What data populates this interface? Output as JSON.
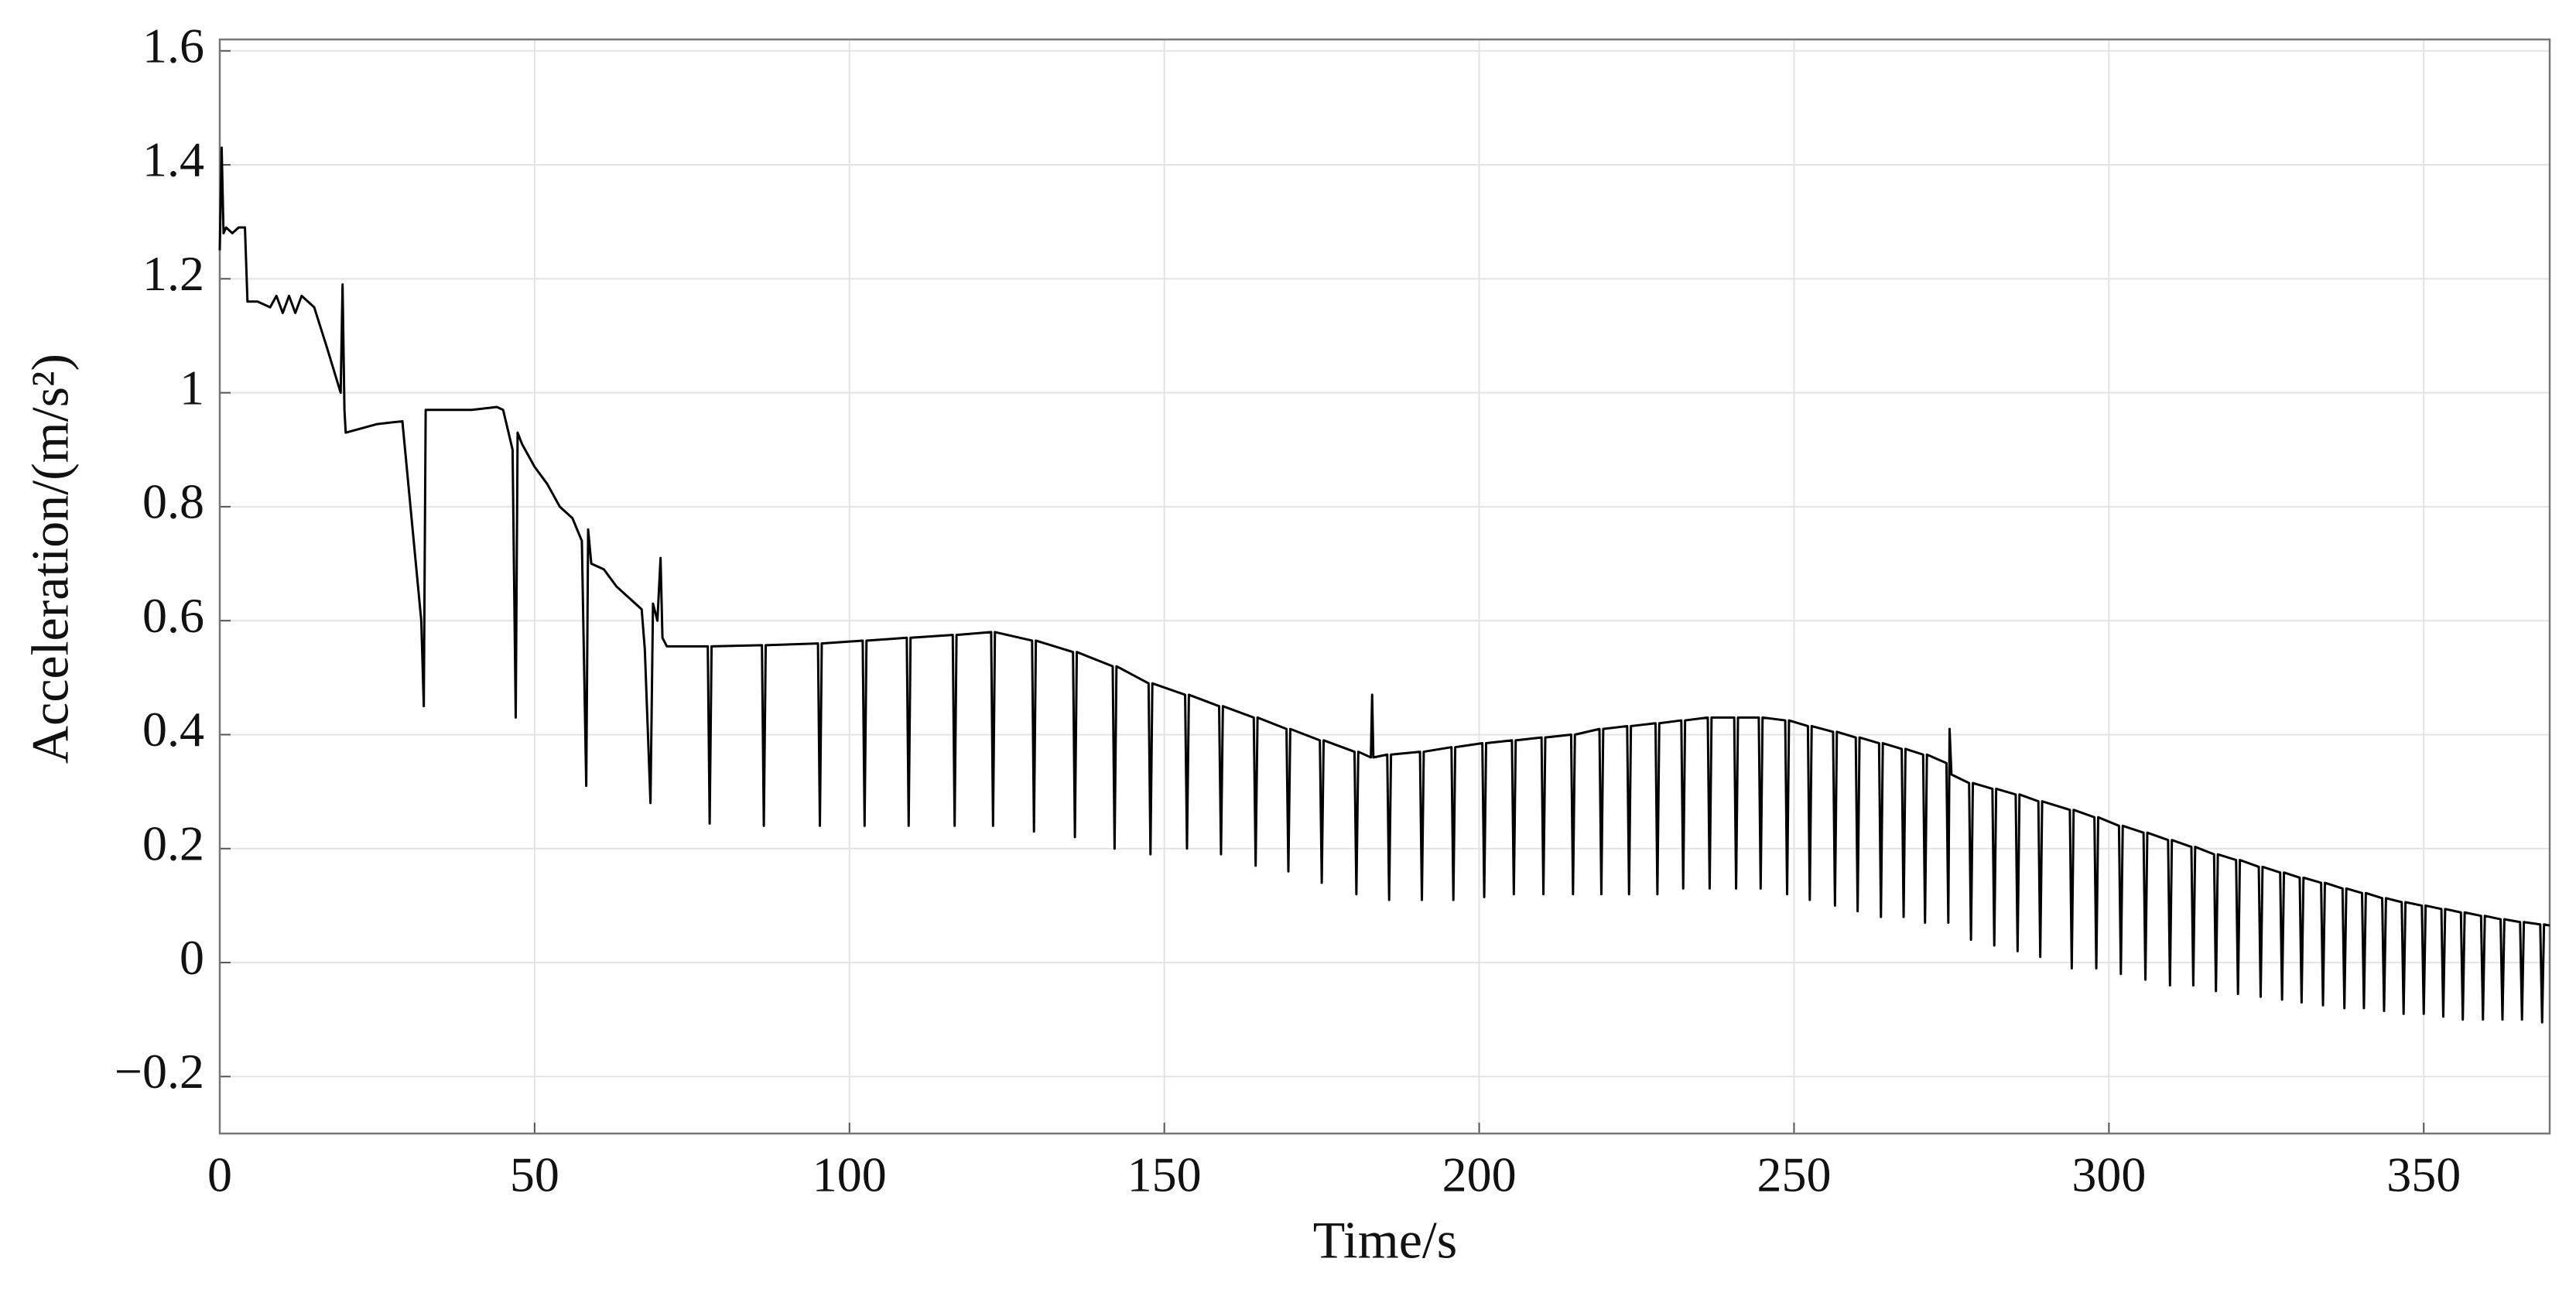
{
  "chart_data": {
    "type": "line",
    "xlabel": "Time/s",
    "ylabel": "Acceleration/(m/s²)",
    "xlim": [
      0,
      370
    ],
    "ylim": [
      -0.3,
      1.62
    ],
    "xticks": [
      0,
      50,
      100,
      150,
      200,
      250,
      300,
      350
    ],
    "yticks": [
      {
        "value": -0.2,
        "label": "−0.2"
      },
      0,
      0.2,
      0.4,
      0.6,
      0.8,
      1,
      1.2,
      1.4,
      1.6
    ],
    "grid": true,
    "x": [
      0,
      0.3,
      0.6,
      1,
      2,
      3,
      4,
      4.4,
      6,
      8,
      9,
      10,
      11,
      12,
      13,
      14,
      15,
      17,
      19.2,
      19.5,
      19.8,
      20,
      25,
      29,
      32,
      32.4,
      32.7,
      36,
      40,
      44,
      45,
      46.5,
      47,
      47.3,
      48,
      50,
      52,
      54,
      56,
      57.5,
      58.2,
      58.5,
      59,
      61,
      63,
      65,
      67,
      67.5,
      68.4,
      68.8,
      69.5,
      70,
      70.3,
      71,
      77.5,
      77.8,
      78.1,
      86.1,
      86.4,
      86.7,
      95,
      95.3,
      95.6,
      102.1,
      102.4,
      102.7,
      109.1,
      109.4,
      109.7,
      116.4,
      116.7,
      117,
      122.5,
      122.8,
      123.1,
      129,
      129.3,
      129.6,
      135.5,
      135.8,
      136.1,
      141.8,
      142.1,
      142.4,
      147.5,
      147.8,
      148.1,
      153.3,
      153.6,
      153.9,
      158.7,
      159,
      159.3,
      164.2,
      164.5,
      164.8,
      169.4,
      169.7,
      170,
      174.7,
      175,
      175.3,
      180.2,
      180.5,
      180.8,
      182.8,
      183,
      183.2,
      185.4,
      185.7,
      186,
      190.6,
      190.9,
      191.2,
      195.6,
      195.9,
      196.2,
      200.5,
      200.8,
      201.1,
      205.2,
      205.5,
      205.8,
      209.9,
      210.2,
      210.5,
      214.6,
      214.9,
      215.2,
      219.1,
      219.4,
      219.7,
      223.5,
      223.8,
      224.1,
      228,
      228.3,
      228.6,
      232.1,
      232.4,
      232.7,
      236.3,
      236.6,
      236.9,
      240.5,
      240.8,
      241.1,
      244.4,
      244.7,
      245,
      248.6,
      248.9,
      249.2,
      252.2,
      252.5,
      252.8,
      256.2,
      256.5,
      256.8,
      259.8,
      260.1,
      260.4,
      263.5,
      263.8,
      264.1,
      267.1,
      267.4,
      267.7,
      270.5,
      270.8,
      271.1,
      274.2,
      274.5,
      274.7,
      275,
      277.8,
      278.1,
      278.4,
      281.5,
      281.8,
      282.1,
      285.2,
      285.5,
      285.8,
      288.8,
      289.1,
      289.4,
      293.8,
      294.1,
      294.4,
      297.7,
      298,
      298.3,
      301.6,
      301.9,
      302.2,
      305.5,
      305.8,
      306.1,
      309.4,
      309.7,
      310,
      313.1,
      313.4,
      313.7,
      316.7,
      317,
      317.3,
      320.2,
      320.5,
      320.8,
      323.8,
      324.1,
      324.4,
      327.2,
      327.5,
      327.8,
      330.3,
      330.6,
      330.9,
      333.7,
      334,
      334.3,
      337.1,
      337.4,
      337.7,
      340.2,
      340.5,
      340.8,
      343.4,
      343.7,
      344,
      346.5,
      346.8,
      347.1,
      349.7,
      350,
      350.3,
      352.8,
      353.1,
      353.4,
      355.9,
      356.2,
      356.5,
      359.1,
      359.4,
      359.7,
      362.2,
      362.5,
      362.8,
      365.3,
      365.6,
      365.9,
      368.5,
      368.8,
      369.1,
      370
    ],
    "series": [
      {
        "color": "#000000",
        "values": [
          1.25,
          1.43,
          1.28,
          1.29,
          1.28,
          1.29,
          1.29,
          1.16,
          1.16,
          1.15,
          1.17,
          1.14,
          1.17,
          1.14,
          1.17,
          1.16,
          1.15,
          1.08,
          1.0,
          1.19,
          0.97,
          0.93,
          0.945,
          0.95,
          0.6,
          0.45,
          0.97,
          0.97,
          0.97,
          0.975,
          0.97,
          0.9,
          0.43,
          0.93,
          0.91,
          0.87,
          0.84,
          0.8,
          0.78,
          0.74,
          0.31,
          0.76,
          0.7,
          0.69,
          0.66,
          0.64,
          0.62,
          0.55,
          0.28,
          0.63,
          0.6,
          0.71,
          0.57,
          0.555,
          0.555,
          0.244,
          0.555,
          0.557,
          0.24,
          0.557,
          0.56,
          0.24,
          0.56,
          0.565,
          0.24,
          0.565,
          0.57,
          0.24,
          0.57,
          0.575,
          0.24,
          0.575,
          0.58,
          0.24,
          0.58,
          0.565,
          0.23,
          0.565,
          0.545,
          0.22,
          0.545,
          0.52,
          0.2,
          0.52,
          0.49,
          0.19,
          0.49,
          0.47,
          0.2,
          0.47,
          0.45,
          0.19,
          0.45,
          0.43,
          0.17,
          0.43,
          0.41,
          0.16,
          0.41,
          0.39,
          0.14,
          0.39,
          0.37,
          0.12,
          0.37,
          0.36,
          0.47,
          0.36,
          0.365,
          0.11,
          0.365,
          0.37,
          0.11,
          0.37,
          0.378,
          0.11,
          0.378,
          0.385,
          0.115,
          0.385,
          0.39,
          0.12,
          0.39,
          0.395,
          0.12,
          0.395,
          0.4,
          0.12,
          0.4,
          0.41,
          0.12,
          0.41,
          0.415,
          0.12,
          0.415,
          0.42,
          0.12,
          0.42,
          0.425,
          0.13,
          0.425,
          0.43,
          0.13,
          0.43,
          0.43,
          0.13,
          0.43,
          0.43,
          0.13,
          0.43,
          0.425,
          0.12,
          0.425,
          0.415,
          0.11,
          0.415,
          0.405,
          0.1,
          0.405,
          0.395,
          0.09,
          0.395,
          0.385,
          0.08,
          0.385,
          0.375,
          0.08,
          0.375,
          0.365,
          0.07,
          0.365,
          0.35,
          0.07,
          0.41,
          0.33,
          0.315,
          0.04,
          0.315,
          0.305,
          0.03,
          0.305,
          0.295,
          0.02,
          0.295,
          0.283,
          0.01,
          0.283,
          0.268,
          -0.01,
          0.268,
          0.255,
          -0.01,
          0.255,
          0.24,
          -0.02,
          0.24,
          0.228,
          -0.03,
          0.228,
          0.215,
          -0.04,
          0.215,
          0.203,
          -0.04,
          0.203,
          0.19,
          -0.05,
          0.19,
          0.18,
          -0.055,
          0.18,
          0.168,
          -0.06,
          0.168,
          0.158,
          -0.065,
          0.158,
          0.149,
          -0.07,
          0.149,
          0.14,
          -0.075,
          0.14,
          0.13,
          -0.08,
          0.13,
          0.122,
          -0.08,
          0.122,
          0.113,
          -0.085,
          0.113,
          0.106,
          -0.09,
          0.106,
          0.1,
          -0.09,
          0.1,
          0.094,
          -0.095,
          0.094,
          0.088,
          -0.1,
          0.088,
          0.082,
          -0.1,
          0.082,
          0.076,
          -0.1,
          0.076,
          0.071,
          -0.1,
          0.071,
          0.067,
          -0.105,
          0.067,
          0.065
        ]
      }
    ]
  }
}
